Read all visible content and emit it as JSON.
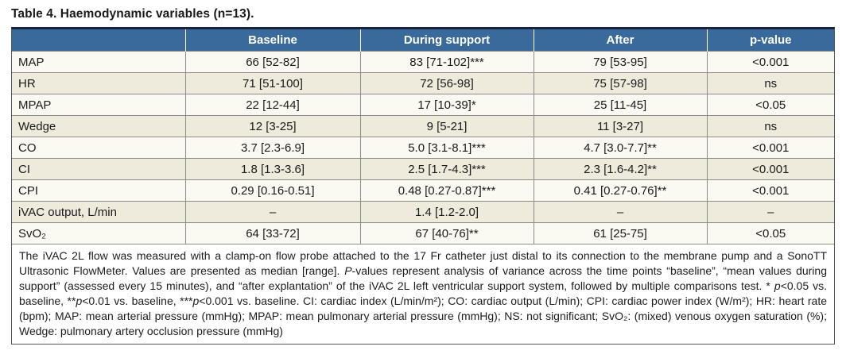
{
  "title": "Table 4. Haemodynamic variables (n=13).",
  "colors": {
    "header_bg": "#3a699c",
    "header_text": "#ffffff",
    "row_even_bg": "#fbfaf2",
    "row_odd_bg": "#eeebdc",
    "outer_border_top": "#17233f",
    "outer_border": "#55565a",
    "grid_line": "#8c8c8c",
    "text": "#1a1a1a"
  },
  "table": {
    "columns": [
      {
        "name": "variable",
        "runs": []
      },
      {
        "name": "baseline",
        "runs": [
          {
            "t": "Baseline"
          }
        ]
      },
      {
        "name": "during-support",
        "runs": [
          {
            "t": "During support"
          }
        ]
      },
      {
        "name": "after",
        "runs": [
          {
            "t": "After"
          }
        ]
      },
      {
        "name": "p-value",
        "runs": [
          {
            "t": "p",
            "i": true
          },
          {
            "t": "-value"
          }
        ]
      }
    ],
    "rows": [
      {
        "label": "MAP",
        "cells": [
          "66 [52-82]",
          "83 [71-102]***",
          "79 [53-95]",
          "<0.001"
        ]
      },
      {
        "label": "HR",
        "cells": [
          "71 [51-100]",
          "72 [56-98]",
          "75 [57-98]",
          "ns"
        ]
      },
      {
        "label": "MPAP",
        "cells": [
          "22 [12-44]",
          "17 [10-39]*",
          "25 [11-45]",
          "<0.05"
        ]
      },
      {
        "label": "Wedge",
        "cells": [
          "12 [3-25]",
          "9 [5-21]",
          "11 [3-27]",
          "ns"
        ]
      },
      {
        "label": "CO",
        "cells": [
          "3.7 [2.3-6.9]",
          "5.0 [3.1-8.1]***",
          "4.7 [3.0-7.7]**",
          "<0.001"
        ]
      },
      {
        "label": "CI",
        "cells": [
          "1.8 [1.3-3.6]",
          "2.5 [1.7-4.3]***",
          "2.3 [1.6-4.2]**",
          "<0.001"
        ]
      },
      {
        "label": "CPI",
        "cells": [
          "0.29 [0.16-0.51]",
          "0.48 [0.27-0.87]***",
          "0.41 [0.27-0.76]**",
          "<0.001"
        ]
      },
      {
        "label": "iVAC output, L/min",
        "cells": [
          "–",
          "1.4 [1.2-2.0]",
          "–",
          "–"
        ]
      },
      {
        "label": "SvO₂",
        "cells": [
          "64 [33-72]",
          "67 [40-76]**",
          "61 [25-75]",
          "<0.05"
        ]
      }
    ]
  },
  "footnote": {
    "runs": [
      {
        "t": "The iVAC 2L flow was measured with a clamp-on flow probe attached to the 17 Fr catheter just distal to its connection to the membrane pump and a SonoTT Ultrasonic FlowMeter. Values are presented as median [range]. "
      },
      {
        "t": "P",
        "i": true
      },
      {
        "t": "-values represent analysis of variance across the time points “baseline”, “mean values during support” (assessed every 15 minutes), and “after explantation” of the iVAC 2L left ventricular support system, followed by multiple comparisons test. * "
      },
      {
        "t": "p",
        "i": true
      },
      {
        "t": "<0.05 vs. baseline, **"
      },
      {
        "t": "p",
        "i": true
      },
      {
        "t": "<0.01 vs. baseline, ***"
      },
      {
        "t": "p",
        "i": true
      },
      {
        "t": "<0.001 vs. baseline. CI: cardiac index (L/min/m²); CO: cardiac output (L/min); CPI: cardiac power index (W/m²); HR: heart rate (bpm); MAP: mean arterial pressure (mmHg); MPAP: mean pulmonary arterial pressure (mmHg); NS: not significant; SvO₂: (mixed) venous oxygen saturation (%); Wedge: pulmonary artery occlusion pressure (mmHg)"
      }
    ]
  }
}
